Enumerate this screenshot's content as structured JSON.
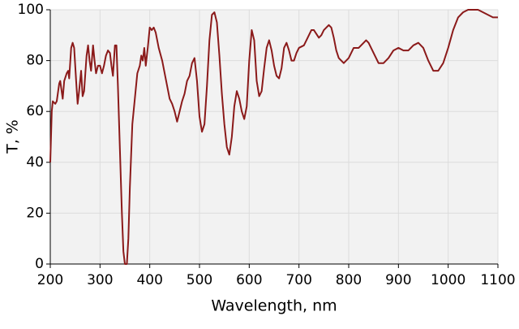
{
  "chart_data": {
    "type": "line",
    "x_label": "Wavelength, nm",
    "y_label": "T, %",
    "x": [
      200,
      203,
      205,
      210,
      213,
      218,
      220,
      225,
      228,
      233,
      236,
      238,
      242,
      245,
      248,
      252,
      255,
      258,
      262,
      265,
      268,
      273,
      276,
      279,
      282,
      286,
      289,
      292,
      296,
      300,
      304,
      308,
      312,
      316,
      320,
      323,
      326,
      330,
      333,
      336,
      340,
      344,
      347,
      350,
      354,
      357,
      360,
      365,
      370,
      375,
      380,
      383,
      386,
      389,
      392,
      396,
      400,
      404,
      408,
      412,
      418,
      425,
      432,
      440,
      445,
      450,
      455,
      460,
      465,
      470,
      475,
      480,
      485,
      490,
      495,
      500,
      505,
      510,
      515,
      520,
      525,
      530,
      535,
      540,
      545,
      550,
      555,
      560,
      565,
      570,
      575,
      580,
      585,
      590,
      595,
      600,
      605,
      610,
      615,
      620,
      625,
      630,
      635,
      640,
      645,
      650,
      655,
      660,
      665,
      670,
      675,
      680,
      685,
      690,
      695,
      700,
      710,
      720,
      725,
      730,
      740,
      745,
      750,
      760,
      765,
      770,
      775,
      780,
      790,
      800,
      810,
      820,
      830,
      835,
      840,
      850,
      860,
      870,
      880,
      890,
      900,
      910,
      920,
      930,
      940,
      950,
      960,
      970,
      980,
      990,
      1000,
      1010,
      1020,
      1030,
      1040,
      1050,
      1060,
      1070,
      1080,
      1090,
      1100
    ],
    "series": [
      {
        "name": "T",
        "color": "#8b1a1a",
        "values": [
          40,
          60,
          64,
          63,
          64,
          71,
          72,
          65,
          72,
          75,
          76,
          73,
          85,
          87,
          85,
          72,
          63,
          68,
          76,
          66,
          68,
          82,
          86,
          80,
          76,
          86,
          80,
          75,
          78,
          78,
          75,
          78,
          82,
          84,
          83,
          78,
          74,
          86,
          86,
          70,
          45,
          20,
          5,
          0,
          0,
          10,
          30,
          55,
          65,
          75,
          78,
          82,
          80,
          85,
          78,
          85,
          93,
          92,
          93,
          91,
          85,
          80,
          73,
          65,
          63,
          60,
          56,
          60,
          64,
          67,
          72,
          74,
          79,
          81,
          72,
          58,
          52,
          55,
          70,
          88,
          98,
          99,
          95,
          82,
          67,
          55,
          46,
          43,
          50,
          62,
          68,
          65,
          60,
          57,
          62,
          80,
          92,
          88,
          72,
          66,
          68,
          77,
          85,
          88,
          84,
          78,
          74,
          73,
          77,
          85,
          87,
          84,
          80,
          80,
          83,
          85,
          86,
          90,
          92,
          92,
          89,
          90,
          92,
          94,
          93,
          89,
          84,
          81,
          79,
          81,
          85,
          85,
          87,
          88,
          87,
          83,
          79,
          79,
          81,
          84,
          85,
          84,
          84,
          86,
          87,
          85,
          80,
          76,
          76,
          79,
          85,
          92,
          97,
          99,
          100,
          100,
          100,
          99,
          98,
          97,
          97
        ]
      }
    ],
    "xlim": [
      200,
      1100
    ],
    "xticks": [
      200,
      300,
      400,
      500,
      600,
      700,
      800,
      900,
      1000,
      1100
    ],
    "ylim": [
      0,
      100
    ],
    "yticks": [
      0,
      20,
      40,
      60,
      80,
      100
    ],
    "grid": true
  }
}
